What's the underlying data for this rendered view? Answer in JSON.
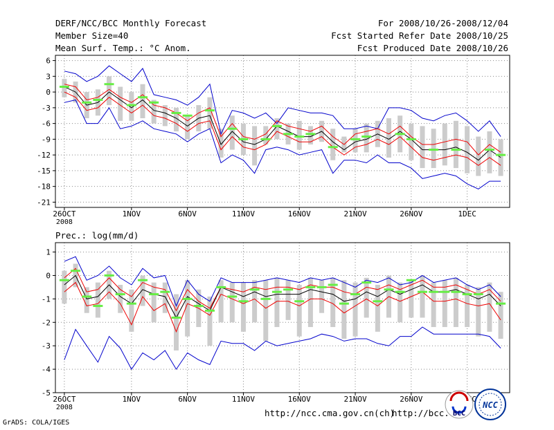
{
  "header": {
    "title": "DERF/NCC/BCC Monthly Forecast",
    "member": "Member Size=40",
    "variable": "Mean Surf. Temp.: °C Anom.",
    "period": "For 2008/10/26-2008/12/04",
    "started": "Fcst Started Refer Date 2008/10/25",
    "produced": "Fcst Produced Date 2008/10/26"
  },
  "footer": {
    "url1": "http://ncc.cma.gov.cn(ch)",
    "url2": "http://bcc.c",
    "grads": "GrADS: COLA/IGES",
    "logo_bcc": "BCC",
    "logo_ncc": "NCC"
  },
  "colors": {
    "spread": "#cccccc",
    "outer": "#0000cc",
    "inner": "#ee0000",
    "mean": "#000000",
    "observed": "#66ee44"
  },
  "chart_data": [
    {
      "type": "line",
      "name": "temperature",
      "ylabel": "",
      "ylim": [
        -22,
        7
      ],
      "yticks": [
        6,
        3,
        0,
        -3,
        -6,
        -9,
        -12,
        -15,
        -18,
        -21
      ],
      "x": [
        1,
        2,
        3,
        4,
        5,
        6,
        7,
        8,
        9,
        10,
        11,
        12,
        13,
        14,
        15,
        16,
        17,
        18,
        19,
        20,
        21,
        22,
        23,
        24,
        25,
        26,
        27,
        28,
        29,
        30,
        31,
        32,
        33,
        34,
        35,
        36,
        37,
        38,
        39,
        40
      ],
      "xtick_labels": [
        {
          "day": 1,
          "label": "26OCT",
          "sub": "2008"
        },
        {
          "day": 7,
          "label": "1NOV"
        },
        {
          "day": 12,
          "label": "6NOV"
        },
        {
          "day": 17,
          "label": "11NOV"
        },
        {
          "day": 22,
          "label": "16NOV"
        },
        {
          "day": 27,
          "label": "21NOV"
        },
        {
          "day": 32,
          "label": "26NOV"
        },
        {
          "day": 37,
          "label": "1DEC"
        }
      ],
      "series": [
        {
          "name": "max",
          "role": "outer",
          "values": [
            4,
            3.5,
            2,
            3,
            5,
            3.5,
            2,
            4.5,
            -0.5,
            -1,
            -1.5,
            -2.5,
            -1,
            1.5,
            -8,
            -3.5,
            -4,
            -5,
            -4,
            -6,
            -3,
            -3.5,
            -4,
            -4,
            -4.5,
            -7,
            -7,
            -6.5,
            -7,
            -3,
            -3,
            -3.5,
            -5,
            -5.5,
            -4.5,
            -4,
            -5.5,
            -7.5,
            -5.5,
            -8.5
          ]
        },
        {
          "name": "upper",
          "role": "inner",
          "values": [
            1.5,
            1,
            -1.5,
            -1,
            0.5,
            -1,
            -2,
            -0.5,
            -2.5,
            -3,
            -4,
            -5.5,
            -4,
            -3,
            -8.5,
            -6,
            -8.5,
            -9,
            -8,
            -5.5,
            -6.5,
            -7,
            -7.5,
            -6.5,
            -8.5,
            -10,
            -8,
            -7.5,
            -7,
            -8,
            -6.5,
            -8.5,
            -10,
            -10,
            -9.5,
            -9,
            -9.5,
            -12,
            -10,
            -11.5
          ]
        },
        {
          "name": "mean",
          "role": "mean",
          "values": [
            1,
            0,
            -2.5,
            -2,
            0,
            -1.5,
            -3,
            -1.5,
            -3.5,
            -4,
            -5,
            -6.5,
            -5,
            -4.5,
            -10,
            -7.5,
            -9.5,
            -10,
            -9,
            -6.5,
            -7.5,
            -8.5,
            -8.5,
            -7.5,
            -9.5,
            -11,
            -9.5,
            -9,
            -8,
            -9,
            -7.5,
            -9,
            -11,
            -11,
            -11,
            -10.5,
            -11.5,
            -13,
            -11,
            -12.5
          ]
        },
        {
          "name": "lower",
          "role": "inner",
          "values": [
            0,
            -1,
            -3.5,
            -3,
            -1,
            -2.5,
            -4,
            -2.5,
            -4.5,
            -5,
            -6,
            -7.5,
            -6,
            -5.5,
            -11,
            -8.5,
            -10.5,
            -11,
            -10,
            -7.5,
            -8.5,
            -9.5,
            -9.5,
            -8.5,
            -10.5,
            -12,
            -10.5,
            -10,
            -9,
            -10,
            -8.5,
            -10.5,
            -12.5,
            -13,
            -12.5,
            -12,
            -12.5,
            -14,
            -12.5,
            -14
          ]
        },
        {
          "name": "min",
          "role": "outer",
          "values": [
            -2,
            -1.5,
            -6,
            -6,
            -3,
            -7,
            -6.5,
            -5.5,
            -7,
            -7.5,
            -8,
            -9.5,
            -8,
            -7,
            -13.5,
            -12,
            -13,
            -15.5,
            -11,
            -10.5,
            -11,
            -12,
            -11.5,
            -11,
            -15.5,
            -13,
            -13,
            -13.5,
            -12,
            -13.5,
            -13.5,
            -14.5,
            -16.5,
            -16,
            -15.5,
            -16,
            -17.5,
            -18.5,
            -17,
            -17
          ]
        },
        {
          "name": "observed",
          "role": "observed",
          "values": [
            1,
            null,
            -2,
            -1.5,
            1.5,
            null,
            -2.5,
            -1,
            -2,
            null,
            -4,
            -4.5,
            null,
            -3.5,
            null,
            -7,
            -9,
            null,
            -9,
            -6.5,
            -8,
            -8.5,
            -8,
            null,
            -10.5,
            null,
            -9,
            -8.5,
            null,
            null,
            -8,
            -9,
            null,
            -11,
            null,
            -11,
            null,
            null,
            -11,
            -12
          ]
        }
      ],
      "spread": {
        "lo": [
          -1,
          -2,
          -5,
          -4.5,
          -2.5,
          -5.5,
          -5.5,
          -5,
          -6,
          -6.5,
          -7.5,
          -9,
          -7.5,
          -7,
          -12.5,
          -11,
          -12,
          -14,
          -10,
          -9,
          -10,
          -11,
          -10,
          -9.5,
          -13,
          -11.5,
          -11.5,
          -11.5,
          -10.5,
          -12.5,
          -11.5,
          -13,
          -14.5,
          -14.5,
          -14,
          -14.5,
          -15.5,
          -16,
          -15.5,
          -16
        ],
        "hi": [
          2.5,
          2,
          0,
          0.5,
          3,
          1,
          0,
          1.5,
          -1.5,
          -2.5,
          -3,
          -4.5,
          -2.5,
          -1,
          -7,
          -4.5,
          -6,
          -6.5,
          -6.5,
          -5,
          -6,
          -5.5,
          -6.5,
          -5.5,
          -7,
          -8.5,
          -7,
          -6,
          -5.5,
          -5,
          -4.5,
          -6,
          -6.5,
          -7,
          -6,
          -5.5,
          -6.5,
          -8.5,
          -7.5,
          -9
        ]
      }
    },
    {
      "type": "line",
      "name": "precipitation",
      "ylabel": "Prec.: log(mm/d)",
      "ylim": [
        -5,
        1.4
      ],
      "yticks": [
        1,
        0,
        -1,
        -2,
        -3,
        -4,
        -5
      ],
      "x": [
        1,
        2,
        3,
        4,
        5,
        6,
        7,
        8,
        9,
        10,
        11,
        12,
        13,
        14,
        15,
        16,
        17,
        18,
        19,
        20,
        21,
        22,
        23,
        24,
        25,
        26,
        27,
        28,
        29,
        30,
        31,
        32,
        33,
        34,
        35,
        36,
        37,
        38,
        39,
        40
      ],
      "xtick_labels": [
        {
          "day": 1,
          "label": "26OCT",
          "sub": "2008"
        },
        {
          "day": 7,
          "label": "1NOV"
        },
        {
          "day": 12,
          "label": "6NOV"
        },
        {
          "day": 17,
          "label": "11NOV"
        },
        {
          "day": 22,
          "label": "16NOV"
        },
        {
          "day": 27,
          "label": "21NOV"
        },
        {
          "day": 32,
          "label": "26NOV"
        },
        {
          "day": 37,
          "label": "1DEC"
        }
      ],
      "series": [
        {
          "name": "max",
          "role": "outer",
          "values": [
            0.6,
            0.8,
            -0.2,
            0,
            0.4,
            -0.1,
            -0.4,
            0.3,
            -0.1,
            0,
            -1.3,
            -0.2,
            -0.8,
            -1.1,
            -0.1,
            -0.3,
            -0.3,
            -0.3,
            -0.2,
            -0.1,
            -0.2,
            -0.3,
            -0.1,
            -0.2,
            -0.1,
            -0.3,
            -0.5,
            -0.2,
            -0.3,
            -0.1,
            -0.4,
            -0.3,
            0,
            -0.3,
            -0.2,
            -0.1,
            -0.4,
            -0.6,
            -0.4,
            -0.9
          ]
        },
        {
          "name": "upper",
          "role": "inner",
          "values": [
            -0.1,
            0.3,
            -0.7,
            -0.6,
            -0.1,
            -0.6,
            -0.9,
            -0.3,
            -0.5,
            -0.6,
            -1.5,
            -0.6,
            -1.1,
            -1.4,
            -0.5,
            -0.6,
            -0.7,
            -0.5,
            -0.6,
            -0.5,
            -0.5,
            -0.6,
            -0.4,
            -0.5,
            -0.5,
            -0.7,
            -0.8,
            -0.5,
            -0.6,
            -0.4,
            -0.6,
            -0.4,
            -0.2,
            -0.5,
            -0.5,
            -0.4,
            -0.6,
            -0.8,
            -0.6,
            -1.1
          ]
        },
        {
          "name": "mean",
          "role": "mean",
          "values": [
            -0.4,
            0,
            -1,
            -0.9,
            -0.4,
            -0.9,
            -1.2,
            -0.6,
            -0.8,
            -0.9,
            -1.8,
            -0.9,
            -1.2,
            -1.5,
            -0.5,
            -0.7,
            -0.9,
            -0.7,
            -0.9,
            -0.8,
            -0.8,
            -0.8,
            -0.6,
            -0.7,
            -0.8,
            -1.1,
            -1,
            -0.7,
            -0.9,
            -0.6,
            -0.8,
            -0.6,
            -0.4,
            -0.7,
            -0.7,
            -0.6,
            -0.8,
            -1,
            -0.8,
            -1.3
          ]
        },
        {
          "name": "lower",
          "role": "inner",
          "values": [
            -0.7,
            -0.3,
            -1.3,
            -1.2,
            -0.7,
            -1.2,
            -2.1,
            -0.9,
            -1.5,
            -1.2,
            -2.4,
            -1.2,
            -1.4,
            -1.7,
            -0.8,
            -1,
            -1.2,
            -1,
            -1.4,
            -1.1,
            -1.1,
            -1.3,
            -1,
            -1,
            -1.2,
            -1.6,
            -1.3,
            -1,
            -1.3,
            -0.9,
            -1.1,
            -0.9,
            -0.7,
            -1.1,
            -1.1,
            -1,
            -1.2,
            -1.3,
            -1.2,
            -1.9
          ]
        },
        {
          "name": "min",
          "role": "outer",
          "values": [
            -3.6,
            -2.3,
            -3,
            -3.7,
            -2.6,
            -3.1,
            -4,
            -3.3,
            -3.6,
            -3.2,
            -4,
            -3.3,
            -3.6,
            -3.8,
            -2.8,
            -2.9,
            -2.9,
            -3.2,
            -2.8,
            -3,
            -2.9,
            -2.8,
            -2.7,
            -2.5,
            -2.6,
            -2.8,
            -2.7,
            -2.7,
            -2.9,
            -3,
            -2.6,
            -2.6,
            -2.2,
            -2.5,
            -2.5,
            -2.5,
            -2.5,
            -2.5,
            -2.6,
            -3.1
          ]
        },
        {
          "name": "observed",
          "role": "observed",
          "values": [
            -0.2,
            0.2,
            -0.9,
            -1.3,
            0,
            -0.8,
            -1.2,
            -0.2,
            -0.8,
            -0.7,
            -1.8,
            -1,
            -1.3,
            -1.5,
            -0.5,
            -0.9,
            -1.1,
            -0.6,
            -1,
            -0.7,
            -0.6,
            -1.1,
            -0.5,
            -0.5,
            -0.4,
            -1.2,
            -0.8,
            -0.3,
            -1.1,
            -0.6,
            -0.7,
            -0.2,
            -0.7,
            -0.7,
            -0.7,
            -0.7,
            -0.8,
            -0.8,
            null,
            -1.2
          ]
        }
      ],
      "spread": {
        "lo": [
          -1.2,
          -0.5,
          -1.6,
          -1.8,
          -1,
          -1.6,
          -2.4,
          -1.3,
          -2,
          -1.6,
          -3.2,
          -2.6,
          -2.2,
          -3,
          -2,
          -2,
          -2.4,
          -2,
          -2.8,
          -2.2,
          -1.9,
          -2.6,
          -2.2,
          -1.6,
          -2.2,
          -2.7,
          -2.6,
          -1.8,
          -2.4,
          -1.8,
          -2,
          -1.8,
          -1.8,
          -2.2,
          -2.2,
          -2.2,
          -2.2,
          -2.6,
          -2.4,
          -2.7
        ],
        "hi": [
          0.2,
          0.5,
          -0.5,
          -0.3,
          0.2,
          -0.4,
          -0.6,
          0,
          -0.3,
          -0.3,
          -0.8,
          -0.2,
          -0.6,
          -0.9,
          -0.2,
          -0.3,
          -0.3,
          -0.2,
          -0.2,
          -0.1,
          -0.2,
          -0.4,
          -0.1,
          -0.2,
          -0.1,
          -0.2,
          -0.3,
          -0.1,
          -0.4,
          0,
          -0.3,
          -0.2,
          0,
          -0.3,
          -0.2,
          -0.1,
          -0.4,
          -0.5,
          -0.3,
          -0.7
        ]
      }
    }
  ]
}
